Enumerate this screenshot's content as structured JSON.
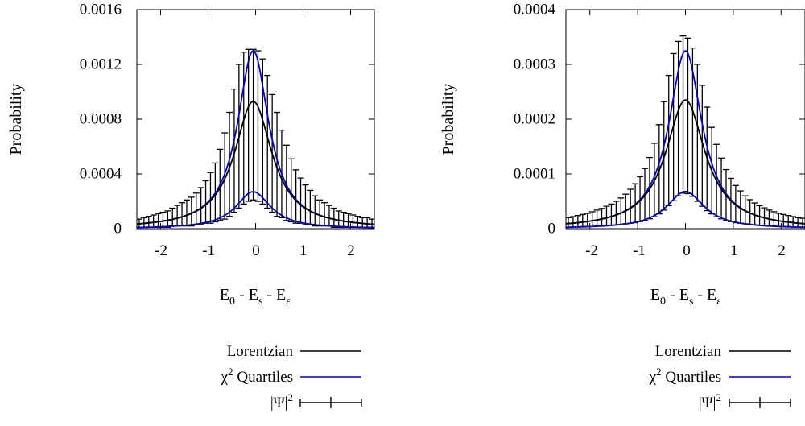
{
  "chart_data": [
    {
      "type": "line",
      "xlabel": "E0 - Es - Eε",
      "ylabel": "Probability",
      "xlim": [
        -2.5,
        2.5
      ],
      "ylim": [
        0,
        0.0016
      ],
      "xticks": [
        -2,
        -1,
        0,
        1,
        2
      ],
      "xtick_labels": [
        "-2",
        "-1",
        "0",
        "1",
        "2"
      ],
      "yticks": [
        0,
        0.0004,
        0.0008,
        0.0012,
        0.0016
      ],
      "ytick_labels": [
        "0",
        "0.0004",
        "0.0008",
        "0.0012",
        "0.0016"
      ],
      "lorentzian": {
        "center": -0.05,
        "gamma": 0.48,
        "peak": 0.00093
      },
      "quartile_upper": {
        "center": -0.05,
        "gamma": 0.4,
        "peak": 0.0013
      },
      "quartile_lower": {
        "center": -0.05,
        "gamma": 0.45,
        "peak": 0.00027
      },
      "psi_points": {
        "x": [
          -2.45,
          -2.35,
          -2.25,
          -2.15,
          -2.05,
          -1.95,
          -1.85,
          -1.75,
          -1.65,
          -1.55,
          -1.45,
          -1.35,
          -1.25,
          -1.15,
          -1.05,
          -0.95,
          -0.85,
          -0.75,
          -0.65,
          -0.55,
          -0.45,
          -0.35,
          -0.25,
          -0.15,
          -0.05,
          0.05,
          0.15,
          0.25,
          0.35,
          0.45,
          0.55,
          0.65,
          0.75,
          0.85,
          0.95,
          1.05,
          1.15,
          1.25,
          1.35,
          1.45,
          1.55,
          1.65,
          1.75,
          1.85,
          1.95,
          2.05,
          2.15,
          2.25,
          2.35,
          2.45
        ],
        "y": [
          4e-05,
          4e-05,
          5e-05,
          5e-05,
          6e-05,
          6e-05,
          7e-05,
          8e-05,
          9e-05,
          0.0001,
          0.00011,
          0.00012,
          0.00014,
          0.00016,
          0.00019,
          0.00022,
          0.00025,
          0.0003,
          0.00037,
          0.00045,
          0.00057,
          0.00072,
          0.00085,
          0.00092,
          0.00094,
          0.00092,
          0.00085,
          0.00072,
          0.00058,
          0.00047,
          0.00039,
          0.00032,
          0.00026,
          0.00022,
          0.00019,
          0.00016,
          0.00014,
          0.00012,
          0.0001,
          9e-05,
          8e-05,
          7e-05,
          6e-05,
          6e-05,
          5e-05,
          5e-05,
          5e-05,
          4e-05,
          4e-05,
          4e-05
        ],
        "ylow": [
          1e-05,
          1e-05,
          1e-05,
          1e-05,
          1e-05,
          1e-05,
          1e-05,
          2e-05,
          2e-05,
          2e-05,
          2e-05,
          2e-05,
          3e-05,
          3e-05,
          4e-05,
          4e-05,
          5e-05,
          6e-05,
          7e-05,
          9e-05,
          0.00012,
          0.00015,
          0.00018,
          0.0002,
          0.00021,
          0.0002,
          0.00018,
          0.00015,
          0.00012,
          9e-05,
          8e-05,
          6e-05,
          5e-05,
          4e-05,
          4e-05,
          3e-05,
          3e-05,
          2e-05,
          2e-05,
          2e-05,
          2e-05,
          1e-05,
          1e-05,
          1e-05,
          1e-05,
          1e-05,
          1e-05,
          1e-05,
          1e-05,
          1e-05
        ],
        "yhigh": [
          7e-05,
          8e-05,
          9e-05,
          0.0001,
          0.00011,
          0.00012,
          0.00013,
          0.00015,
          0.00017,
          0.00019,
          0.00021,
          0.00023,
          0.00026,
          0.0003,
          0.00035,
          0.00041,
          0.00048,
          0.00058,
          0.0007,
          0.00085,
          0.00102,
          0.0012,
          0.00129,
          0.00131,
          0.00131,
          0.0013,
          0.00124,
          0.00112,
          0.00098,
          0.00085,
          0.00072,
          0.00061,
          0.00051,
          0.00043,
          0.00037,
          0.00032,
          0.00028,
          0.00024,
          0.00021,
          0.00019,
          0.00017,
          0.00015,
          0.00013,
          0.00012,
          0.00011,
          0.0001,
          9e-05,
          8e-05,
          8e-05,
          7e-05
        ]
      },
      "legend": [
        "Lorentzian",
        "χ2 Quartiles",
        "|Ψ|2"
      ],
      "colors": {
        "lorentzian": "#000000",
        "quartiles": "#0000c8",
        "psi": "#000000"
      },
      "legend_placement": "bottom"
    },
    {
      "type": "line",
      "xlabel": "E0 - Es - Eε",
      "ylabel": "Probability",
      "xlim": [
        -2.5,
        2.5
      ],
      "ylim": [
        0,
        0.0004
      ],
      "xticks": [
        -2,
        -1,
        0,
        1,
        2
      ],
      "xtick_labels": [
        "-2",
        "-1",
        "0",
        "1",
        "2"
      ],
      "yticks": [
        0,
        0.0001,
        0.0002,
        0.0003,
        0.0004
      ],
      "ytick_labels": [
        "0",
        "0.0001",
        "0.0002",
        "0.0003",
        "0.0004"
      ],
      "lorentzian": {
        "center": 0.0,
        "gamma": 0.5,
        "peak": 0.000235
      },
      "quartile_upper": {
        "center": 0.0,
        "gamma": 0.42,
        "peak": 0.000325
      },
      "quartile_lower": {
        "center": 0.0,
        "gamma": 0.48,
        "peak": 6.8e-05
      },
      "psi_points": {
        "x": [
          -2.45,
          -2.35,
          -2.25,
          -2.15,
          -2.05,
          -1.95,
          -1.85,
          -1.75,
          -1.65,
          -1.55,
          -1.45,
          -1.35,
          -1.25,
          -1.15,
          -1.05,
          -0.95,
          -0.85,
          -0.75,
          -0.65,
          -0.55,
          -0.45,
          -0.35,
          -0.25,
          -0.15,
          -0.05,
          0.05,
          0.15,
          0.25,
          0.35,
          0.45,
          0.55,
          0.65,
          0.75,
          0.85,
          0.95,
          1.05,
          1.15,
          1.25,
          1.35,
          1.45,
          1.55,
          1.65,
          1.75,
          1.85,
          1.95,
          2.05,
          2.15,
          2.25,
          2.35,
          2.45
        ],
        "y": [
          1.2e-05,
          1.3e-05,
          1.4e-05,
          1.5e-05,
          1.7e-05,
          1.8e-05,
          2e-05,
          2.2e-05,
          2.4e-05,
          2.6e-05,
          2.9e-05,
          3.2e-05,
          3.6e-05,
          4.1e-05,
          4.7e-05,
          5.4e-05,
          6.3e-05,
          7.5e-05,
          9e-05,
          0.00011,
          0.000137,
          0.000168,
          0.0002,
          0.000228,
          0.000252,
          0.000251,
          0.000225,
          0.000196,
          0.000164,
          0.000134,
          0.000108,
          8.9e-05,
          7.4e-05,
          6.2e-05,
          5.3e-05,
          4.6e-05,
          4e-05,
          3.5e-05,
          3.1e-05,
          2.8e-05,
          2.5e-05,
          2.3e-05,
          2.1e-05,
          1.9e-05,
          1.7e-05,
          1.6e-05,
          1.5e-05,
          1.4e-05,
          1.3e-05,
          1.2e-05
        ],
        "ylow": [
          3e-06,
          3e-06,
          3e-06,
          4e-06,
          4e-06,
          4e-06,
          5e-06,
          5e-06,
          6e-06,
          6e-06,
          7e-06,
          8e-06,
          9e-06,
          1e-05,
          1.1e-05,
          1.3e-05,
          1.5e-05,
          1.8e-05,
          2.2e-05,
          2.7e-05,
          3.4e-05,
          4.2e-05,
          5.1e-05,
          6e-05,
          6.5e-05,
          6.4e-05,
          5.9e-05,
          5e-05,
          4.1e-05,
          3.3e-05,
          2.7e-05,
          2.2e-05,
          1.8e-05,
          1.5e-05,
          1.3e-05,
          1.1e-05,
          1e-05,
          9e-06,
          8e-06,
          7e-06,
          6e-06,
          6e-06,
          5e-06,
          5e-06,
          4e-06,
          4e-06,
          4e-06,
          3e-06,
          3e-06,
          3e-06
        ],
        "yhigh": [
          2e-05,
          2.2e-05,
          2.4e-05,
          2.6e-05,
          2.8e-05,
          3.1e-05,
          3.4e-05,
          3.7e-05,
          4.1e-05,
          4.5e-05,
          5e-05,
          5.6e-05,
          6.3e-05,
          7.2e-05,
          8.2e-05,
          9.5e-05,
          0.00011,
          0.00013,
          0.000156,
          0.00019,
          0.000232,
          0.00028,
          0.00032,
          0.000342,
          0.000352,
          0.000348,
          0.00033,
          0.0003,
          0.000262,
          0.000222,
          0.000185,
          0.000154,
          0.000129,
          0.000108,
          9.2e-05,
          7.9e-05,
          6.9e-05,
          6e-05,
          5.3e-05,
          4.7e-05,
          4.2e-05,
          3.8e-05,
          3.4e-05,
          3.1e-05,
          2.8e-05,
          2.6e-05,
          2.4e-05,
          2.2e-05,
          2e-05,
          1.9e-05
        ]
      },
      "legend": [
        "Lorentzian",
        "χ2 Quartiles",
        "|Ψ|2"
      ],
      "colors": {
        "lorentzian": "#000000",
        "quartiles": "#0000c8",
        "psi": "#000000"
      },
      "legend_placement": "bottom"
    }
  ]
}
